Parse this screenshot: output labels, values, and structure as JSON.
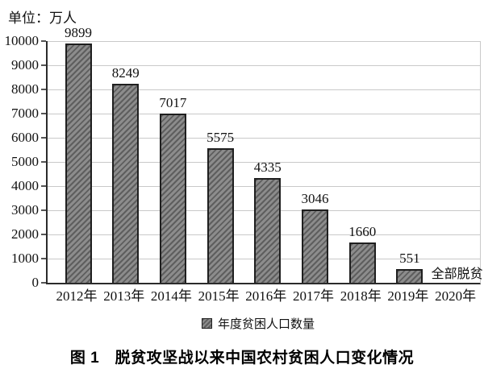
{
  "unit_label": "单位：万人",
  "legend": {
    "label": "年度贫困人口数量"
  },
  "caption": "图 1　脱贫攻坚战以来中国农村贫困人口变化情况",
  "colors": {
    "bar_fill": "#8c8c8c",
    "bar_hatch": "#5e5e5e",
    "bar_border": "#1f1f1f",
    "gridline": "#c9c9c9",
    "axis": "#2b2b2b",
    "text": "#111111"
  },
  "chart_data": {
    "type": "bar",
    "title": "图 1　脱贫攻坚战以来中国农村贫困人口变化情况",
    "unit": "单位：万人",
    "categories": [
      "2012年",
      "2013年",
      "2014年",
      "2015年",
      "2016年",
      "2017年",
      "2018年",
      "2019年",
      "2020年"
    ],
    "values": [
      9899,
      8249,
      7017,
      5575,
      4335,
      3046,
      1660,
      551,
      null
    ],
    "bar_labels": [
      "9899",
      "8249",
      "7017",
      "5575",
      "4335",
      "3046",
      "1660",
      "551",
      ""
    ],
    "annotations": [
      {
        "category": "2020年",
        "text": "全部脱贫"
      }
    ],
    "legend_entries": [
      "年度贫困人口数量"
    ],
    "legend_position": "bottom",
    "xlabel": "",
    "ylabel": "",
    "ylim": [
      0,
      10000
    ],
    "ytick_step": 1000,
    "yticks": [
      0,
      1000,
      2000,
      3000,
      4000,
      5000,
      6000,
      7000,
      8000,
      9000,
      10000
    ],
    "grid": true,
    "hatch": "diagonal-forward"
  }
}
